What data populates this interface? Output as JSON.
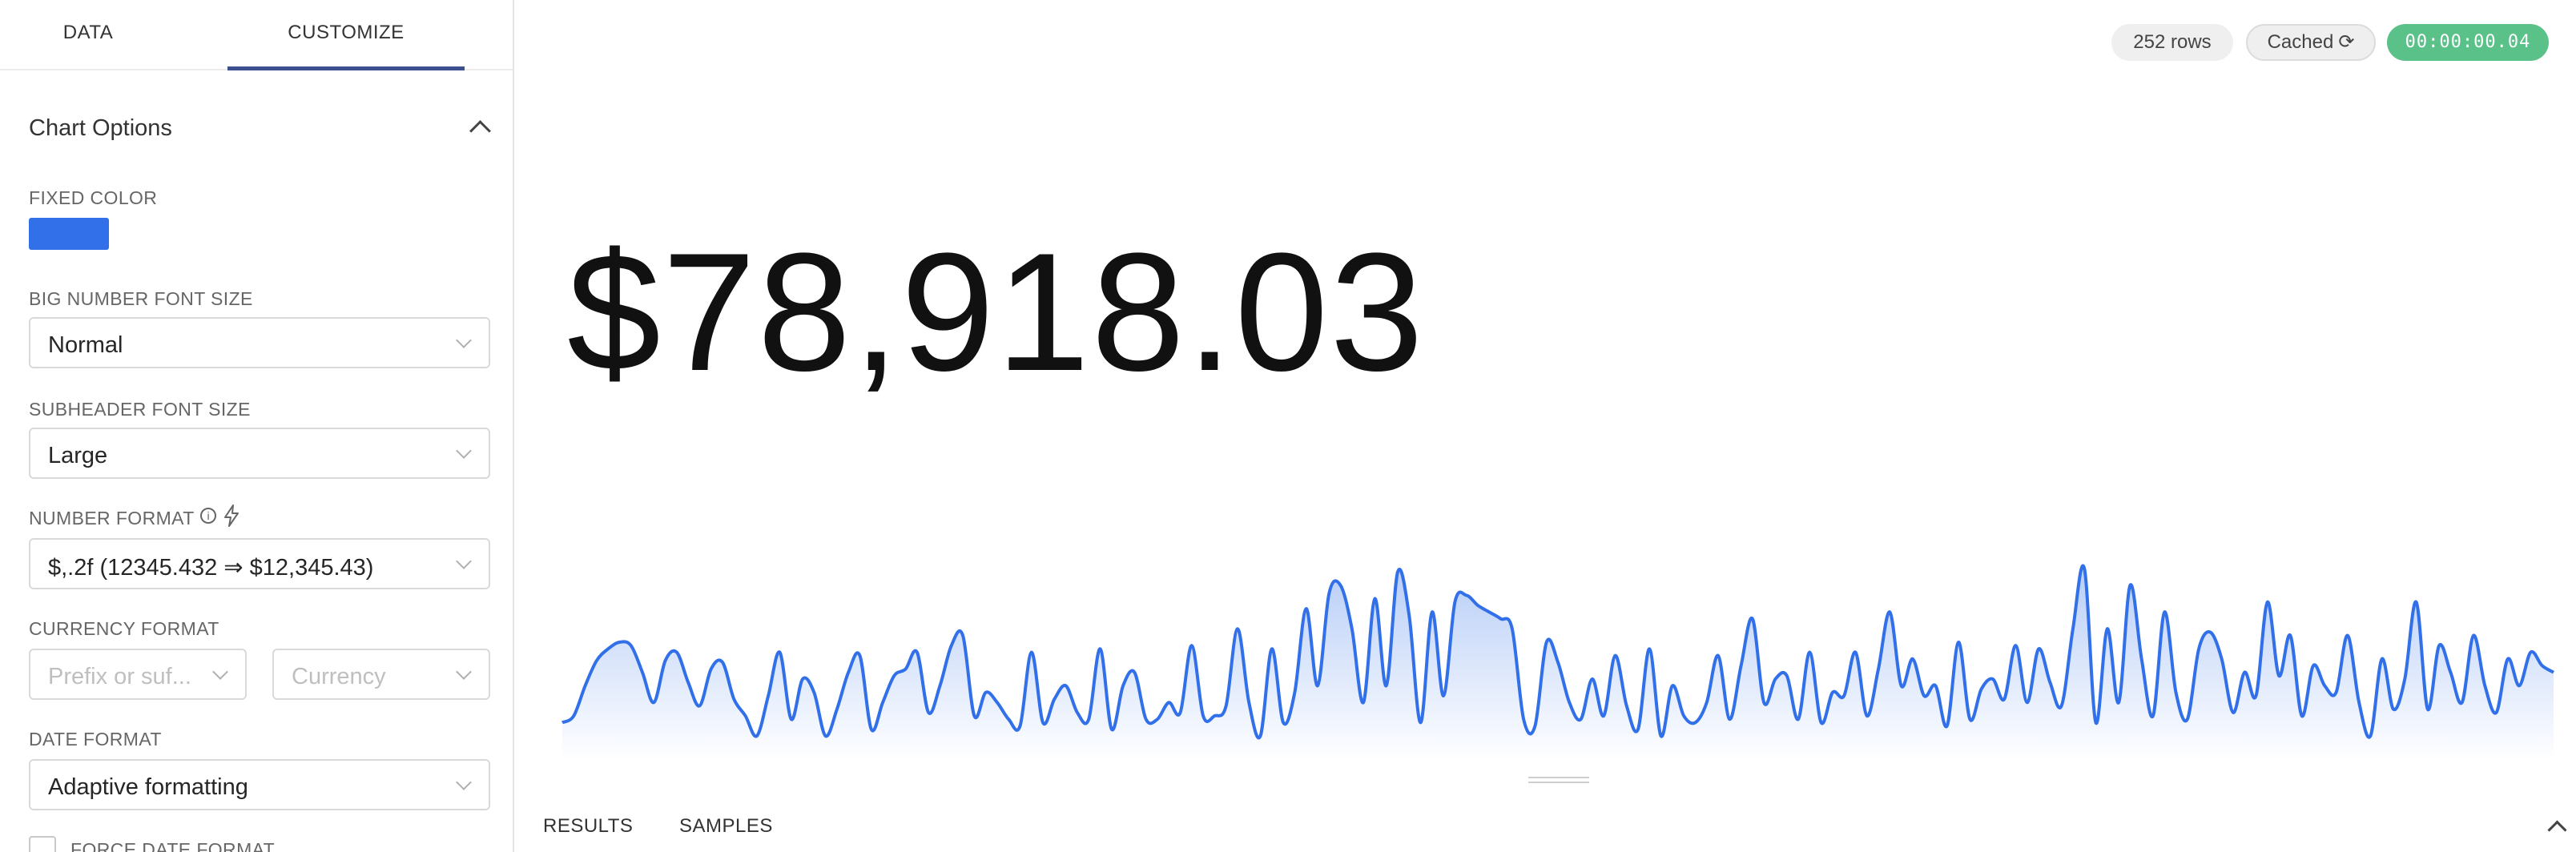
{
  "tabs": {
    "data_label": "DATA",
    "customize_label": "CUSTOMIZE"
  },
  "chart_options": {
    "title": "Chart Options",
    "fixed_color": {
      "label": "FIXED COLOR",
      "value": "#3170e8"
    },
    "big_number_font_size": {
      "label": "BIG NUMBER FONT SIZE",
      "value": "Normal"
    },
    "subheader_font_size": {
      "label": "SUBHEADER FONT SIZE",
      "value": "Large"
    },
    "number_format": {
      "label": "NUMBER FORMAT",
      "value": "$,.2f (12345.432 ⇒ $12,345.43)"
    },
    "currency_format": {
      "label": "CURRENCY FORMAT",
      "prefix_placeholder": "Prefix or suf...",
      "currency_placeholder": "Currency"
    },
    "date_format": {
      "label": "DATE FORMAT",
      "value": "Adaptive formatting"
    },
    "force_date_format": {
      "label": "FORCE DATE FORMAT",
      "checked": false
    }
  },
  "status": {
    "rows": "252 rows",
    "cached": "Cached",
    "timer": "00:00:00.04"
  },
  "big_number": {
    "value": "$78,918.03"
  },
  "trendline": {
    "color": "#3170e8",
    "series": [
      18,
      22,
      40,
      55,
      62,
      66,
      64,
      48,
      30,
      55,
      60,
      42,
      28,
      50,
      54,
      32,
      22,
      10,
      34,
      60,
      20,
      44,
      36,
      10,
      26,
      48,
      58,
      14,
      30,
      46,
      50,
      60,
      24,
      40,
      64,
      70,
      22,
      36,
      30,
      20,
      16,
      60,
      18,
      32,
      40,
      24,
      20,
      62,
      14,
      40,
      48,
      20,
      20,
      30,
      24,
      64,
      22,
      22,
      28,
      74,
      30,
      10,
      62,
      18,
      36,
      86,
      40,
      95,
      100,
      74,
      30,
      92,
      40,
      108,
      82,
      18,
      84,
      34,
      90,
      94,
      88,
      84,
      80,
      74,
      20,
      16,
      66,
      54,
      30,
      20,
      44,
      22,
      58,
      28,
      14,
      62,
      10,
      40,
      22,
      18,
      30,
      58,
      20,
      52,
      80,
      30,
      44,
      46,
      20,
      60,
      18,
      36,
      34,
      60,
      22,
      50,
      84,
      40,
      56,
      34,
      40,
      16,
      66,
      20,
      38,
      44,
      32,
      64,
      30,
      62,
      42,
      28,
      74,
      110,
      18,
      74,
      30,
      100,
      56,
      22,
      84,
      36,
      20,
      62,
      72,
      56,
      24,
      48,
      34,
      90,
      46,
      70,
      22,
      52,
      40,
      36,
      70,
      30,
      10,
      56,
      26,
      44,
      90,
      26,
      64,
      48,
      30,
      70,
      40,
      24,
      56,
      40,
      60,
      52,
      48
    ]
  }
}
